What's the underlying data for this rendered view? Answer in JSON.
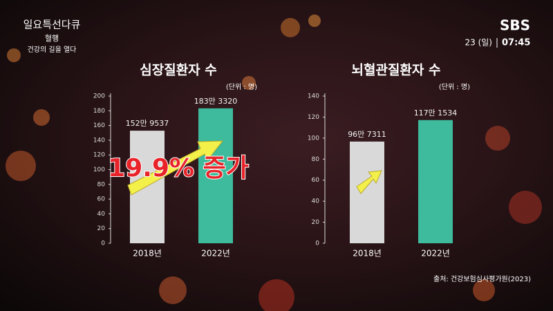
{
  "broadcast": {
    "program": "일요특선다큐",
    "episode": "혈행",
    "subtitle": "건강의 길을 열다",
    "channel": "SBS",
    "date": "23 (일)",
    "time": "07:45",
    "source": "출처: 건강보험심사평가원(2023)"
  },
  "chart_data": [
    {
      "type": "bar",
      "title": "심장질환자 수",
      "unit_label": "(단위 : 명)",
      "annotation": "19.9% 증가",
      "categories": [
        "2018년",
        "2022년"
      ],
      "values": [
        152.9537,
        183.332
      ],
      "value_labels": [
        "152만 9537",
        "183만 3320"
      ],
      "colors": [
        "#d9d9d9",
        "#3dbb9c"
      ],
      "ylim": [
        0,
        200
      ],
      "yticks": [
        0,
        20,
        40,
        60,
        80,
        100,
        120,
        140,
        160,
        180,
        200
      ]
    },
    {
      "type": "bar",
      "title": "뇌혈관질환자 수",
      "unit_label": "(단위 : 명)",
      "categories": [
        "2018년",
        "2022년"
      ],
      "values": [
        96.7311,
        117.1534
      ],
      "value_labels": [
        "96만 7311",
        "117만 1534"
      ],
      "colors": [
        "#d9d9d9",
        "#3dbb9c"
      ],
      "ylim": [
        0,
        140
      ],
      "yticks": [
        0,
        20,
        40,
        60,
        80,
        100,
        120,
        140
      ]
    }
  ]
}
